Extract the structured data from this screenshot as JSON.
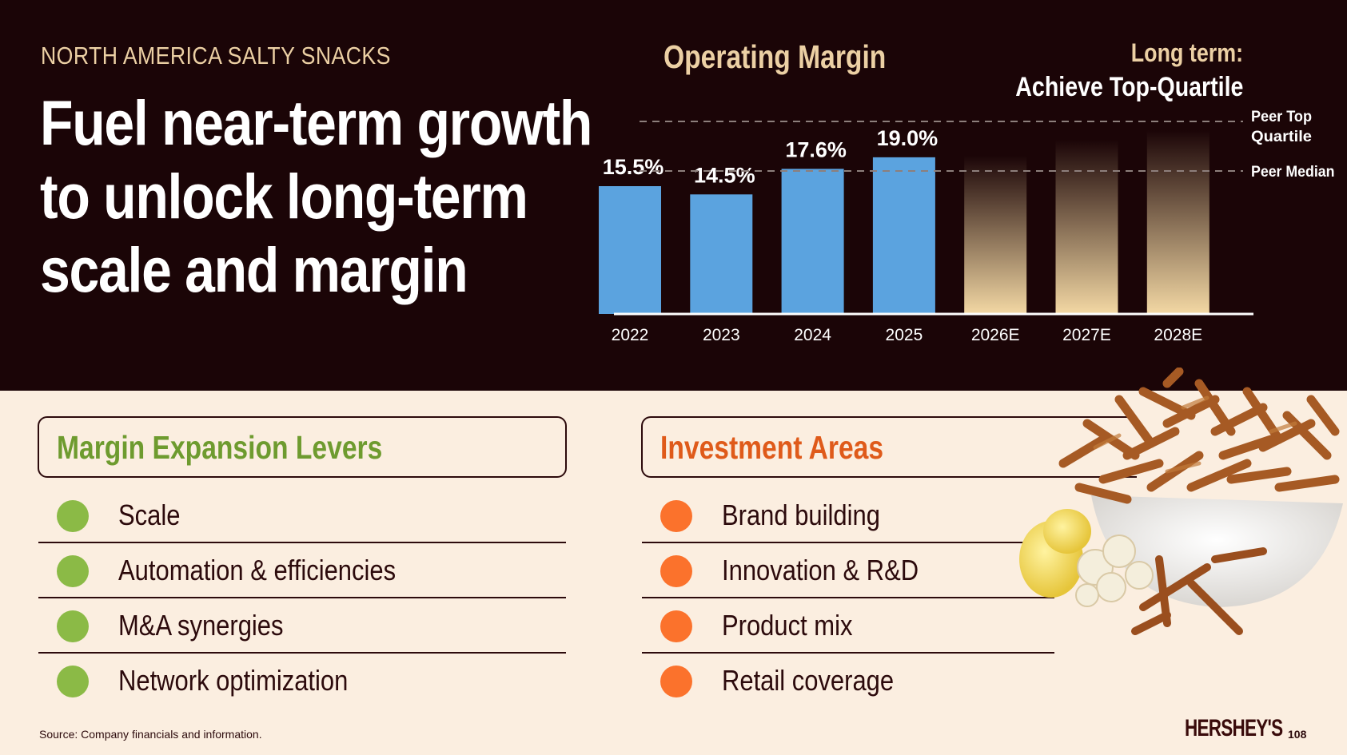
{
  "header": {
    "eyebrow": "NORTH AMERICA SALTY SNACKS",
    "headline": [
      "Fuel near-term growth",
      "to unlock long-term",
      "scale and margin"
    ]
  },
  "chart_data": {
    "type": "bar",
    "title": "Operating Margin",
    "categories": [
      "2022",
      "2023",
      "2024",
      "2025",
      "2026E",
      "2027E",
      "2028E"
    ],
    "series": [
      {
        "values": [
          15.5,
          14.5,
          17.6,
          19.0,
          null,
          null,
          null
        ],
        "color": "#5ba3df"
      }
    ],
    "data_labels": [
      "15.5%",
      "14.5%",
      "17.6%",
      "19.0%",
      "",
      "",
      ""
    ],
    "projected": [
      "2026E",
      "2027E",
      "2028E"
    ],
    "projected_color": "#f3d8a4",
    "reference_lines": [
      {
        "label": "Peer Top Quartile",
        "label_lines": [
          "Peer Top",
          "Quartile"
        ]
      },
      {
        "label": "Peer Median"
      }
    ],
    "annotation": {
      "line1": "Long term:",
      "line2": "Achieve Top-Quartile"
    },
    "grid": false,
    "y_axis_visible": false
  },
  "levers": {
    "title": "Margin Expansion Levers",
    "items": [
      "Scale",
      "Automation & efficiencies",
      "M&A synergies",
      "Network optimization"
    ],
    "dot_color": "#8bba46"
  },
  "investment": {
    "title": "Investment Areas",
    "items": [
      "Brand building",
      "Innovation & R&D",
      "Product mix",
      "Retail coverage"
    ],
    "dot_color": "#fb722c"
  },
  "footer": {
    "source": "Source: Company financials and information.",
    "logo": "HERSHEY'S",
    "page": "108"
  }
}
